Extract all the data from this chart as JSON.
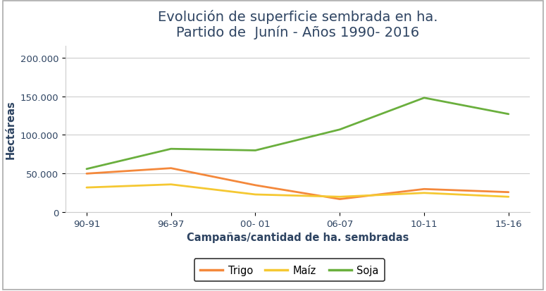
{
  "title_line1": "Evolución de superficie sembrada en ha.",
  "title_line2": "Partido de  Junín - Años 1990- 2016",
  "xlabel": "Campañas/cantidad de ha. sembradas",
  "ylabel": "Hectáreas",
  "x_labels": [
    "90-91",
    "96-97",
    "00- 01",
    "06-07",
    "10-11",
    "15-16"
  ],
  "trigo": [
    50000,
    57000,
    35000,
    17000,
    30000,
    26000
  ],
  "maiz": [
    32000,
    36000,
    23000,
    20000,
    25000,
    20000
  ],
  "soja": [
    56000,
    82000,
    80000,
    107000,
    148000,
    127000
  ],
  "trigo_color": "#F4883B",
  "maiz_color": "#F5C832",
  "soja_color": "#6AAF3D",
  "ylim": [
    0,
    215000
  ],
  "yticks": [
    0,
    50000,
    100000,
    150000,
    200000
  ],
  "title_color": "#2E4462",
  "axis_label_color": "#2E4462",
  "title_fontsize": 14,
  "axis_label_fontsize": 10.5,
  "tick_fontsize": 9.5,
  "legend_labels": [
    "Trigo",
    "Maíz",
    "Soja"
  ],
  "background_color": "#FFFFFF",
  "grid_color": "#CCCCCC",
  "border_color": "#AAAAAA"
}
